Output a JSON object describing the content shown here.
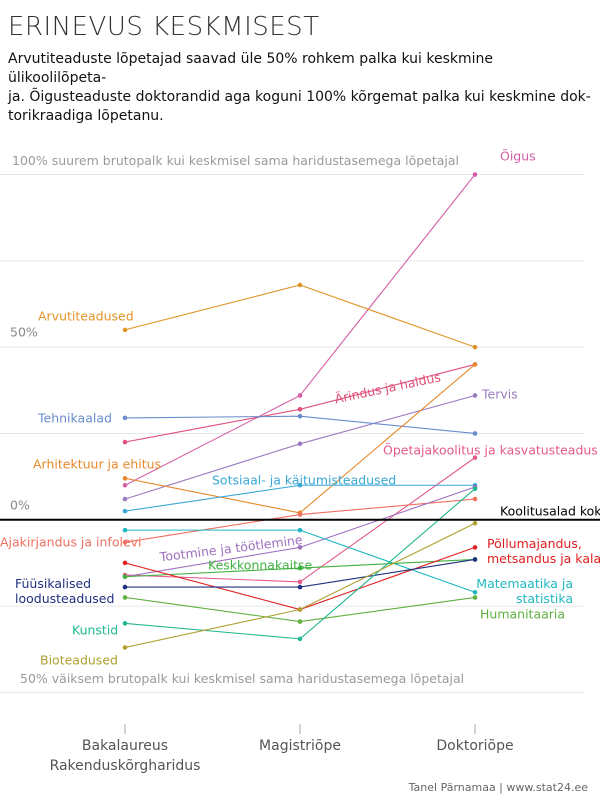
{
  "chart_data": {
    "type": "slope",
    "title": "ERINEVUS KESKMISEST",
    "subtitle": "Arvutiteaduste lõpetajad saavad üle 50% rohkem palka kui keskmine ülikoolilõpeta-\nja. Õigusteaduste doktorandid aga koguni 100% kõrgemat palka kui keskmine dok-\ntorikraadiga lõpetanu.",
    "annotations": [
      "100% suurem brutopalk kui keskmisel sama haridustasemega lõpetajal",
      "50% väiksem brutopalk kui keskmisel sama haridustasemega lõpetajal"
    ],
    "source": "Tanel Pärnamaa | www.stat24.ee",
    "categories": [
      "Bakalaureus\nRakenduskõrgharidus",
      "Magistriõpe",
      "Doktoriõpe"
    ],
    "ylim": [
      -58,
      110
    ],
    "yticks": [
      {
        "value": -50,
        "label": null
      },
      {
        "value": -25,
        "label": null
      },
      {
        "value": 0,
        "label": "0%"
      },
      {
        "value": 25,
        "label": null
      },
      {
        "value": 50,
        "label": "50%"
      },
      {
        "value": 75,
        "label": null
      },
      {
        "value": 100,
        "label": null
      }
    ],
    "grid": true,
    "series": [
      {
        "name": "Õigus",
        "color": "#d45fa5",
        "values": [
          10,
          36,
          100
        ]
      },
      {
        "name": "Arvutiteadused",
        "color": "#e0952a",
        "values": [
          55,
          68,
          50
        ]
      },
      {
        "name": "Ärindus ja haldus",
        "color": "#e0507a",
        "values": [
          22.5,
          32,
          45
        ]
      },
      {
        "name": "Tervis",
        "color": "#9a7cc0",
        "values": [
          6,
          22,
          36
        ]
      },
      {
        "name": "Tehnikaalad",
        "color": "#6a8ccc",
        "values": [
          29.5,
          30,
          25
        ]
      },
      {
        "name": "Õpetajakoolitus ja kasvatusteadus",
        "color": "#e45a8a",
        "values": [
          -16,
          -18,
          18
        ]
      },
      {
        "name": "Arhitektuur ja ehitus",
        "color": "#e8882a",
        "values": [
          12,
          2,
          45
        ]
      },
      {
        "name": "Sotsiaal- ja käitumisteadused",
        "color": "#3aa8d8",
        "values": [
          2.5,
          10,
          10
        ]
      },
      {
        "name": "Ajakirjandus ja infolevi",
        "color": "#f07060",
        "values": [
          -6.5,
          1.5,
          6
        ]
      },
      {
        "name": "Tootmine ja töötlemine",
        "color": "#a070c0",
        "values": [
          -16.5,
          -8,
          9.5
        ]
      },
      {
        "name": "Matemaatika ja\nstatistika",
        "color": "#20b8c0",
        "values": [
          -3,
          -3,
          -21
        ]
      },
      {
        "name": "Keskkonnakaitse",
        "color": "#40b040",
        "values": [
          -16.5,
          -14,
          -11.5
        ]
      },
      {
        "name": "Põllumajandus,\nmetsandus ja kalandus",
        "color": "#e02020",
        "values": [
          -12.5,
          -26,
          -8
        ]
      },
      {
        "name": "Füüsikalised\nloodusteadused",
        "color": "#203080",
        "values": [
          -19.5,
          -19.5,
          -11.5
        ]
      },
      {
        "name": "Humanitaaria",
        "color": "#60b040",
        "values": [
          -22.5,
          -29.5,
          -22.5
        ]
      },
      {
        "name": "Kunstid",
        "color": "#20b890",
        "values": [
          -30,
          -34.5,
          9
        ]
      },
      {
        "name": "Bioteadused",
        "color": "#b0a030",
        "values": [
          -37,
          -26,
          -1
        ]
      },
      {
        "name": "Koolitusalad kokku",
        "color": "#000000",
        "values": [
          0,
          0,
          0
        ],
        "reference": true
      }
    ]
  }
}
